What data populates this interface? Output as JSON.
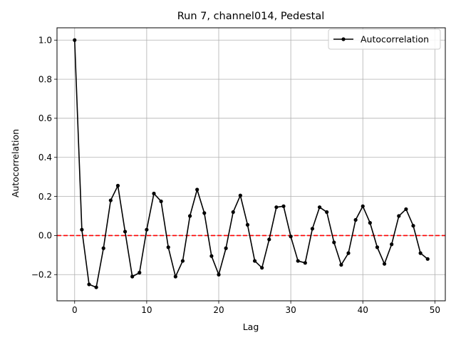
{
  "chart_data": {
    "type": "line",
    "title": "Run 7, channel014, Pedestal",
    "xlabel": "Lag",
    "ylabel": "Autocorrelation",
    "xlim": [
      -2.45,
      51.45
    ],
    "ylim": [
      -0.334,
      1.063
    ],
    "xticks": [
      0,
      10,
      20,
      30,
      40,
      50
    ],
    "xtick_labels": [
      "0",
      "10",
      "20",
      "30",
      "40",
      "50"
    ],
    "yticks": [
      -0.2,
      0.0,
      0.2,
      0.4,
      0.6,
      0.8,
      1.0
    ],
    "ytick_labels": [
      "−0.2",
      "0.0",
      "0.2",
      "0.4",
      "0.6",
      "0.8",
      "1.0"
    ],
    "grid": true,
    "legend_position": "top-right",
    "series": [
      {
        "name": "Autocorrelation",
        "color": "#000000",
        "marker": "dot",
        "x": [
          0,
          1,
          2,
          3,
          4,
          5,
          6,
          7,
          8,
          9,
          10,
          11,
          12,
          13,
          14,
          15,
          16,
          17,
          18,
          19,
          20,
          21,
          22,
          23,
          24,
          25,
          26,
          27,
          28,
          29,
          30,
          31,
          32,
          33,
          34,
          35,
          36,
          37,
          38,
          39,
          40,
          41,
          42,
          43,
          44,
          45,
          46,
          47,
          48,
          49
        ],
        "y": [
          1.0,
          0.03,
          -0.25,
          -0.265,
          -0.065,
          0.18,
          0.255,
          0.02,
          -0.21,
          -0.19,
          0.03,
          0.215,
          0.175,
          -0.06,
          -0.21,
          -0.13,
          0.1,
          0.235,
          0.115,
          -0.105,
          -0.2,
          -0.065,
          0.12,
          0.205,
          0.055,
          -0.13,
          -0.165,
          -0.02,
          0.145,
          0.15,
          -0.005,
          -0.13,
          -0.14,
          0.035,
          0.145,
          0.12,
          -0.035,
          -0.15,
          -0.09,
          0.08,
          0.15,
          0.065,
          -0.06,
          -0.145,
          -0.045,
          0.1,
          0.135,
          0.05,
          -0.09,
          -0.12
        ]
      }
    ],
    "reference_line": {
      "y": 0.0,
      "color": "#ff0000",
      "style": "dashed"
    }
  }
}
